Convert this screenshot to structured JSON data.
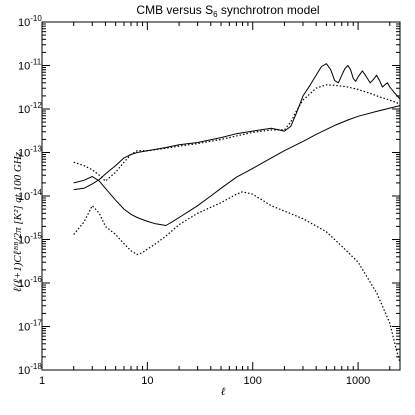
{
  "chart_data": {
    "type": "line",
    "title_pre": "CMB versus S",
    "title_sub": "6",
    "title_post": " synchrotron model",
    "xlabel": "ℓ",
    "ylabel": "ℓ(ℓ+1)Cℓᴮᴮ/2π  [K²] at 100 GHz",
    "xscale": "log",
    "yscale": "log",
    "xlim": [
      1,
      2500
    ],
    "ylim": [
      1e-18,
      1e-10
    ],
    "x_tick_labels": [
      {
        "value": 1,
        "label": "1"
      },
      {
        "value": 10,
        "label": "10"
      },
      {
        "value": 100,
        "label": "100"
      },
      {
        "value": 1000,
        "label": "1000"
      }
    ],
    "y_tick_labels": [
      {
        "value": 1e-18,
        "base": "10",
        "exp": "-18"
      },
      {
        "value": 1e-17,
        "base": "10",
        "exp": "-17"
      },
      {
        "value": 1e-16,
        "base": "10",
        "exp": "-16"
      },
      {
        "value": 1e-15,
        "base": "10",
        "exp": "-15"
      },
      {
        "value": 1e-14,
        "base": "10",
        "exp": "-14"
      },
      {
        "value": 1e-13,
        "base": "10",
        "exp": "-13"
      },
      {
        "value": 1e-12,
        "base": "10",
        "exp": "-12"
      },
      {
        "value": 1e-11,
        "base": "10",
        "exp": "-11"
      },
      {
        "value": 1e-10,
        "base": "10",
        "exp": "-10"
      }
    ],
    "series": [
      {
        "style": "solid",
        "points": [
          [
            2,
            2e-14
          ],
          [
            2.5,
            2.3e-14
          ],
          [
            3,
            2.8e-14
          ],
          [
            3.5,
            2.2e-14
          ],
          [
            4,
            1.5e-14
          ],
          [
            5,
            8e-15
          ],
          [
            6,
            5e-15
          ],
          [
            7,
            3.8e-15
          ],
          [
            8,
            3.2e-15
          ],
          [
            10,
            2.6e-15
          ],
          [
            12,
            2.3e-15
          ],
          [
            15,
            2.1e-15
          ],
          [
            17,
            2.5e-15
          ],
          [
            20,
            3.2e-15
          ],
          [
            25,
            4.5e-15
          ],
          [
            30,
            6e-15
          ],
          [
            40,
            1e-14
          ],
          [
            50,
            1.5e-14
          ],
          [
            70,
            2.7e-14
          ],
          [
            100,
            4.3e-14
          ],
          [
            150,
            7.5e-14
          ],
          [
            200,
            1.1e-13
          ],
          [
            300,
            1.8e-13
          ],
          [
            400,
            2.6e-13
          ],
          [
            600,
            4.2e-13
          ],
          [
            800,
            5.6e-13
          ],
          [
            1000,
            6.8e-13
          ],
          [
            1500,
            8.8e-13
          ],
          [
            2000,
            1.05e-12
          ],
          [
            2500,
            1.2e-12
          ]
        ]
      },
      {
        "style": "solid",
        "points": [
          [
            2,
            1.4e-14
          ],
          [
            2.5,
            1.5e-14
          ],
          [
            3,
            1.9e-14
          ],
          [
            3.5,
            2.4e-14
          ],
          [
            4,
            3.2e-14
          ],
          [
            5,
            5e-14
          ],
          [
            6,
            7.5e-14
          ],
          [
            7,
            9e-14
          ],
          [
            8,
            1e-13
          ],
          [
            10,
            1.1e-13
          ],
          [
            15,
            1.3e-13
          ],
          [
            20,
            1.5e-13
          ],
          [
            30,
            1.7e-13
          ],
          [
            50,
            2.2e-13
          ],
          [
            70,
            2.7e-13
          ],
          [
            100,
            3.1e-13
          ],
          [
            150,
            3.6e-13
          ],
          [
            200,
            3.1e-13
          ],
          [
            230,
            4e-13
          ],
          [
            260,
            8e-13
          ],
          [
            300,
            2e-12
          ],
          [
            350,
            3.5e-12
          ],
          [
            400,
            6e-12
          ],
          [
            450,
            9.5e-12
          ],
          [
            500,
            1.1e-11
          ],
          [
            550,
            8e-12
          ],
          [
            600,
            4.5e-12
          ],
          [
            650,
            4e-12
          ],
          [
            700,
            6e-12
          ],
          [
            750,
            8.5e-12
          ],
          [
            800,
            1e-11
          ],
          [
            850,
            8e-12
          ],
          [
            900,
            5e-12
          ],
          [
            950,
            4.3e-12
          ],
          [
            1000,
            5.5e-12
          ],
          [
            1100,
            7.5e-12
          ],
          [
            1200,
            5.5e-12
          ],
          [
            1300,
            4e-12
          ],
          [
            1400,
            4.8e-12
          ],
          [
            1500,
            6e-12
          ],
          [
            1600,
            4.5e-12
          ],
          [
            1700,
            3.2e-12
          ],
          [
            1800,
            3.6e-12
          ],
          [
            1900,
            4e-12
          ],
          [
            2000,
            3.2e-12
          ],
          [
            2200,
            2.4e-12
          ],
          [
            2500,
            1.7e-12
          ]
        ]
      },
      {
        "style": "dotted",
        "points": [
          [
            2,
            6e-14
          ],
          [
            2.5,
            5e-14
          ],
          [
            3,
            4e-14
          ],
          [
            3.5,
            3e-14
          ],
          [
            4,
            2.2e-14
          ],
          [
            5,
            3.5e-14
          ],
          [
            6,
            6e-14
          ],
          [
            7,
            9e-14
          ],
          [
            8,
            1.1e-13
          ],
          [
            10,
            1.1e-13
          ],
          [
            15,
            1.25e-13
          ],
          [
            20,
            1.4e-13
          ],
          [
            30,
            1.6e-13
          ],
          [
            50,
            2e-13
          ],
          [
            100,
            2.9e-13
          ],
          [
            150,
            3.3e-13
          ],
          [
            200,
            3.3e-13
          ],
          [
            230,
            5e-13
          ],
          [
            260,
            9e-13
          ],
          [
            300,
            1.6e-12
          ],
          [
            400,
            3e-12
          ],
          [
            500,
            3.6e-12
          ],
          [
            600,
            3.5e-12
          ],
          [
            800,
            3.2e-12
          ],
          [
            1000,
            2.8e-12
          ],
          [
            1300,
            2.3e-12
          ],
          [
            1600,
            1.9e-12
          ],
          [
            2000,
            1.6e-12
          ],
          [
            2500,
            1.3e-12
          ]
        ]
      },
      {
        "style": "dotted",
        "points": [
          [
            2,
            1.3e-15
          ],
          [
            2.5,
            2.5e-15
          ],
          [
            3,
            6e-15
          ],
          [
            3.5,
            4e-15
          ],
          [
            4,
            2e-15
          ],
          [
            5,
            1.3e-15
          ],
          [
            6,
            8e-16
          ],
          [
            7,
            5.5e-16
          ],
          [
            8,
            4.5e-16
          ],
          [
            9,
            5e-16
          ],
          [
            10,
            6e-16
          ],
          [
            12,
            8e-16
          ],
          [
            15,
            1.2e-15
          ],
          [
            20,
            2.2e-15
          ],
          [
            30,
            4e-15
          ],
          [
            50,
            7e-15
          ],
          [
            70,
            1.1e-14
          ],
          [
            80,
            1.25e-14
          ],
          [
            100,
            1.1e-14
          ],
          [
            150,
            6e-15
          ],
          [
            200,
            4.5e-15
          ],
          [
            300,
            3e-15
          ],
          [
            500,
            1.5e-15
          ],
          [
            700,
            7e-16
          ],
          [
            1000,
            3e-16
          ],
          [
            1500,
            6e-17
          ],
          [
            2000,
            1.2e-17
          ],
          [
            2300,
            3e-18
          ],
          [
            2500,
            1.5e-18
          ]
        ]
      }
    ]
  }
}
